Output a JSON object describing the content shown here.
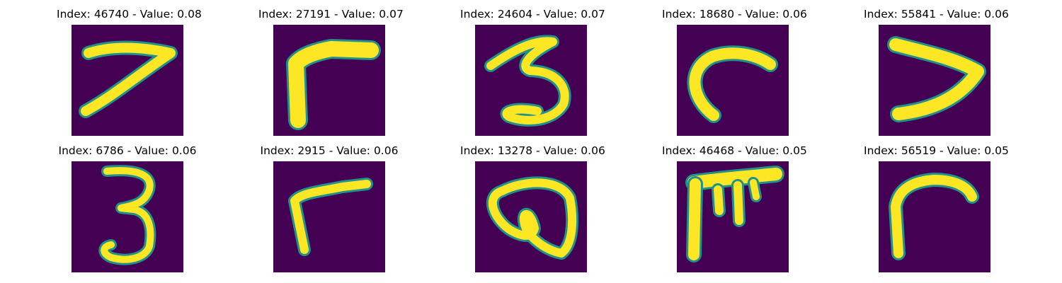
{
  "figure": {
    "colors": {
      "background": "#440154",
      "low": "#3b528b",
      "mid": "#21918c",
      "high": "#fde725"
    },
    "panels": [
      {
        "title": "Index: 46740 - Value: 0.08",
        "digit_shape": "seven"
      },
      {
        "title": "Index: 27191 - Value: 0.07",
        "digit_shape": "seven-like corner"
      },
      {
        "title": "Index: 24604 - Value: 0.07",
        "digit_shape": "three"
      },
      {
        "title": "Index: 18680 - Value: 0.06",
        "digit_shape": "curved stroke"
      },
      {
        "title": "Index: 55841 - Value: 0.06",
        "digit_shape": "seven"
      },
      {
        "title": "Index: 6786 - Value: 0.06",
        "digit_shape": "three"
      },
      {
        "title": "Index: 2915 - Value: 0.06",
        "digit_shape": "corner stroke"
      },
      {
        "title": "Index: 13278 - Value: 0.06",
        "digit_shape": "looped shape"
      },
      {
        "title": "Index: 46468 - Value: 0.05",
        "digit_shape": "multi-stroke"
      },
      {
        "title": "Index: 56519 - Value: 0.05",
        "digit_shape": "curved corner"
      }
    ]
  }
}
